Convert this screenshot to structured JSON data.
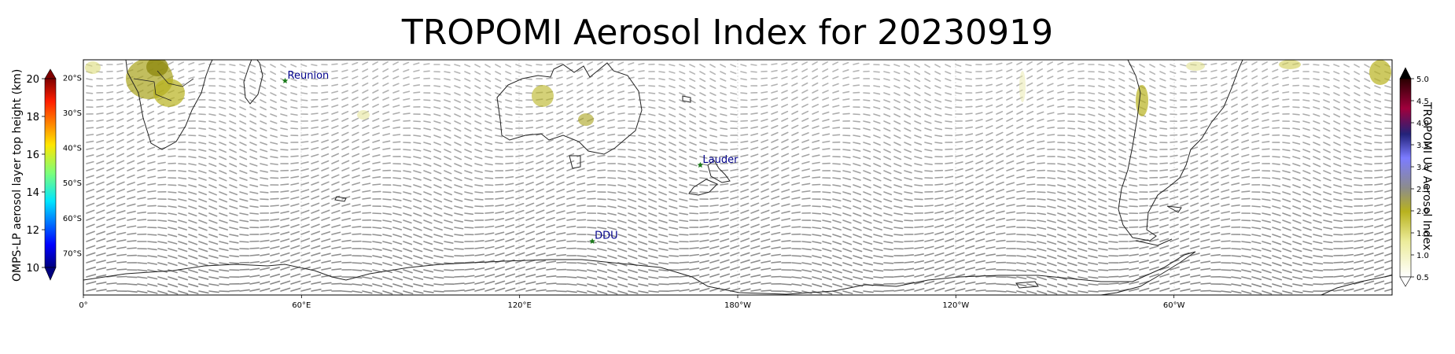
{
  "title": "TROPOMI Aerosol Index for 20230919",
  "map": {
    "lon_labels": [
      "0°",
      "60°E",
      "120°E",
      "180°W",
      "120°W",
      "60°W"
    ],
    "lat_labels": [
      "20°S",
      "30°S",
      "40°S",
      "50°S",
      "60°S",
      "70°S"
    ],
    "stations": [
      {
        "name": "Reunion",
        "lon": 55.5,
        "lat": -21.0
      },
      {
        "name": "Lauder",
        "lon": 169.7,
        "lat": -45.0
      },
      {
        "name": "DDU",
        "lon": 140.0,
        "lat": -66.7
      }
    ],
    "station_marker_color": "#1a7a1a",
    "station_label_color": "#00008b"
  },
  "left_colorbar": {
    "label": "OMPS-LP aerosol layer top height (km)",
    "ticks": [
      "10",
      "12",
      "14",
      "16",
      "18",
      "20"
    ],
    "range": [
      10,
      20
    ],
    "colormap": "jet",
    "extend": "both"
  },
  "right_colorbar": {
    "label": "TROPOMI UV Aerosol Index",
    "ticks": [
      "0.5",
      "1.0",
      "1.5",
      "2.0",
      "2.5",
      "3.0",
      "3.5",
      "4.0",
      "4.5",
      "5.0"
    ],
    "range": [
      0.5,
      5.0
    ],
    "extend": "both"
  }
}
